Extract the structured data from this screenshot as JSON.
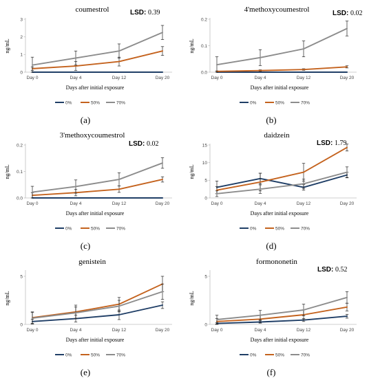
{
  "chart_data": [
    {
      "id": "a",
      "type": "line",
      "title": "coumestrol",
      "lsd_label": "LSD:",
      "lsd_value": "0.39",
      "panel_label": "(a)",
      "xlabel": "Days after initial exposure",
      "ylabel": "ng/mL",
      "categories": [
        "Day 0",
        "Day 4",
        "Day 12",
        "Day 20"
      ],
      "ylim": [
        0,
        3
      ],
      "yticks": [
        0,
        1,
        2,
        3
      ],
      "ytick_labels": [
        "0",
        "1",
        "2",
        "3"
      ],
      "series": [
        {
          "name": "0%",
          "color": "#1f3e66",
          "values": [
            0,
            0,
            0,
            0
          ],
          "errors": [
            0,
            0,
            0,
            0
          ]
        },
        {
          "name": "50%",
          "color": "#c4621d",
          "values": [
            0.2,
            0.35,
            0.6,
            1.2
          ],
          "errors": [
            0.1,
            0.25,
            0.25,
            0.25
          ]
        },
        {
          "name": "70%",
          "color": "#8c8c8c",
          "values": [
            0.4,
            0.8,
            1.2,
            2.25
          ],
          "errors": [
            0.45,
            0.4,
            0.4,
            0.4
          ]
        }
      ]
    },
    {
      "id": "b",
      "type": "line",
      "title": "4'methoxycoumestrol",
      "lsd_label": "LSD:",
      "lsd_value": "0.02",
      "panel_label": "(b)",
      "xlabel": "Days after initial exposure",
      "ylabel": "ng/mL",
      "categories": [
        "Day 0",
        "Day 4",
        "Day 12",
        "Day 20"
      ],
      "ylim": [
        0,
        0.2
      ],
      "yticks": [
        0,
        0.1,
        0.2
      ],
      "ytick_labels": [
        "0.0",
        "0.1",
        "0.2"
      ],
      "series": [
        {
          "name": "0%",
          "color": "#1f3e66",
          "values": [
            0,
            0,
            0,
            0
          ],
          "errors": [
            0,
            0,
            0,
            0
          ]
        },
        {
          "name": "50%",
          "color": "#c4621d",
          "values": [
            0.003,
            0.006,
            0.01,
            0.02
          ],
          "errors": [
            0.002,
            0.003,
            0.003,
            0.004
          ]
        },
        {
          "name": "70%",
          "color": "#8c8c8c",
          "values": [
            0.028,
            0.055,
            0.088,
            0.165
          ],
          "errors": [
            0.03,
            0.03,
            0.03,
            0.028
          ]
        }
      ]
    },
    {
      "id": "c",
      "type": "line",
      "title": "3'methoxycoumestrol",
      "lsd_label": "LSD:",
      "lsd_value": "0.02",
      "panel_label": "(c)",
      "xlabel": "Days after initial exposure",
      "ylabel": "ng/mL",
      "categories": [
        "Day 0",
        "Day 4",
        "Day 12",
        "Day 20"
      ],
      "ylim": [
        0,
        0.2
      ],
      "yticks": [
        0,
        0.1,
        0.2
      ],
      "ytick_labels": [
        "0.0",
        "0.1",
        "0.2"
      ],
      "series": [
        {
          "name": "0%",
          "color": "#1f3e66",
          "values": [
            0,
            0,
            0,
            0
          ],
          "errors": [
            0,
            0,
            0,
            0
          ]
        },
        {
          "name": "50%",
          "color": "#c4621d",
          "values": [
            0.01,
            0.02,
            0.033,
            0.07
          ],
          "errors": [
            0.01,
            0.012,
            0.012,
            0.01
          ]
        },
        {
          "name": "70%",
          "color": "#8c8c8c",
          "values": [
            0.022,
            0.043,
            0.07,
            0.132
          ],
          "errors": [
            0.022,
            0.025,
            0.025,
            0.02
          ]
        }
      ]
    },
    {
      "id": "d",
      "type": "line",
      "title": "daidzein",
      "lsd_label": "LSD:",
      "lsd_value": "1.79",
      "panel_label": "(d)",
      "xlabel": "Days after initial exposure",
      "ylabel": "ng/mL",
      "categories": [
        "Day 0",
        "Day 4",
        "Day 12",
        "Day 20"
      ],
      "ylim": [
        0,
        15
      ],
      "yticks": [
        0,
        5,
        10,
        15
      ],
      "ytick_labels": [
        "0",
        "5",
        "10",
        "15"
      ],
      "series": [
        {
          "name": "0%",
          "color": "#1f3e66",
          "values": [
            3.0,
            5.5,
            3.0,
            6.5
          ],
          "errors": [
            1.8,
            1.5,
            0.8,
            0.8
          ]
        },
        {
          "name": "50%",
          "color": "#c4621d",
          "values": [
            2.2,
            4.5,
            7.3,
            14.3
          ],
          "errors": [
            1.0,
            2.5,
            2.5,
            1.0
          ]
        },
        {
          "name": "70%",
          "color": "#8c8c8c",
          "values": [
            1.2,
            2.5,
            4.0,
            7.3
          ],
          "errors": [
            0.8,
            1.2,
            1.3,
            1.5
          ]
        }
      ]
    },
    {
      "id": "e",
      "type": "line",
      "title": "genistein",
      "lsd_label": "",
      "lsd_value": "",
      "panel_label": "(e)",
      "xlabel": "Days after initial exposure",
      "ylabel": "ng/mL",
      "categories": [
        "Day 0",
        "Day 4",
        "Day 12",
        "Day 20"
      ],
      "ylim": [
        0,
        5.5
      ],
      "yticks": [
        0,
        5
      ],
      "ytick_labels": [
        "0",
        "5"
      ],
      "series": [
        {
          "name": "0%",
          "color": "#1f3e66",
          "values": [
            0.3,
            0.6,
            1.0,
            2.0
          ],
          "errors": [
            0.25,
            0.35,
            0.5,
            0.35
          ]
        },
        {
          "name": "50%",
          "color": "#c4621d",
          "values": [
            0.7,
            1.3,
            2.1,
            4.2
          ],
          "errors": [
            0.6,
            0.7,
            0.7,
            0.8
          ]
        },
        {
          "name": "70%",
          "color": "#8c8c8c",
          "values": [
            0.65,
            1.2,
            1.9,
            3.4
          ],
          "errors": [
            0.6,
            0.6,
            0.6,
            0.8
          ]
        }
      ]
    },
    {
      "id": "f",
      "type": "line",
      "title": "formononetin",
      "lsd_label": "LSD:",
      "lsd_value": "0.52",
      "panel_label": "(f)",
      "xlabel": "Days after initial exposure",
      "ylabel": "ng/mL",
      "categories": [
        "Day 0",
        "Day 4",
        "Day 12",
        "Day 20"
      ],
      "ylim": [
        0,
        5.5
      ],
      "yticks": [
        0,
        5
      ],
      "ytick_labels": [
        "0",
        "5"
      ],
      "series": [
        {
          "name": "0%",
          "color": "#1f3e66",
          "values": [
            0.1,
            0.25,
            0.45,
            0.85
          ],
          "errors": [
            0.08,
            0.12,
            0.15,
            0.2
          ]
        },
        {
          "name": "50%",
          "color": "#c4621d",
          "values": [
            0.3,
            0.55,
            1.0,
            1.8
          ],
          "errors": [
            0.3,
            0.4,
            0.5,
            0.4
          ]
        },
        {
          "name": "70%",
          "color": "#8c8c8c",
          "values": [
            0.5,
            0.95,
            1.5,
            2.8
          ],
          "errors": [
            0.45,
            0.5,
            0.6,
            0.6
          ]
        }
      ]
    }
  ]
}
